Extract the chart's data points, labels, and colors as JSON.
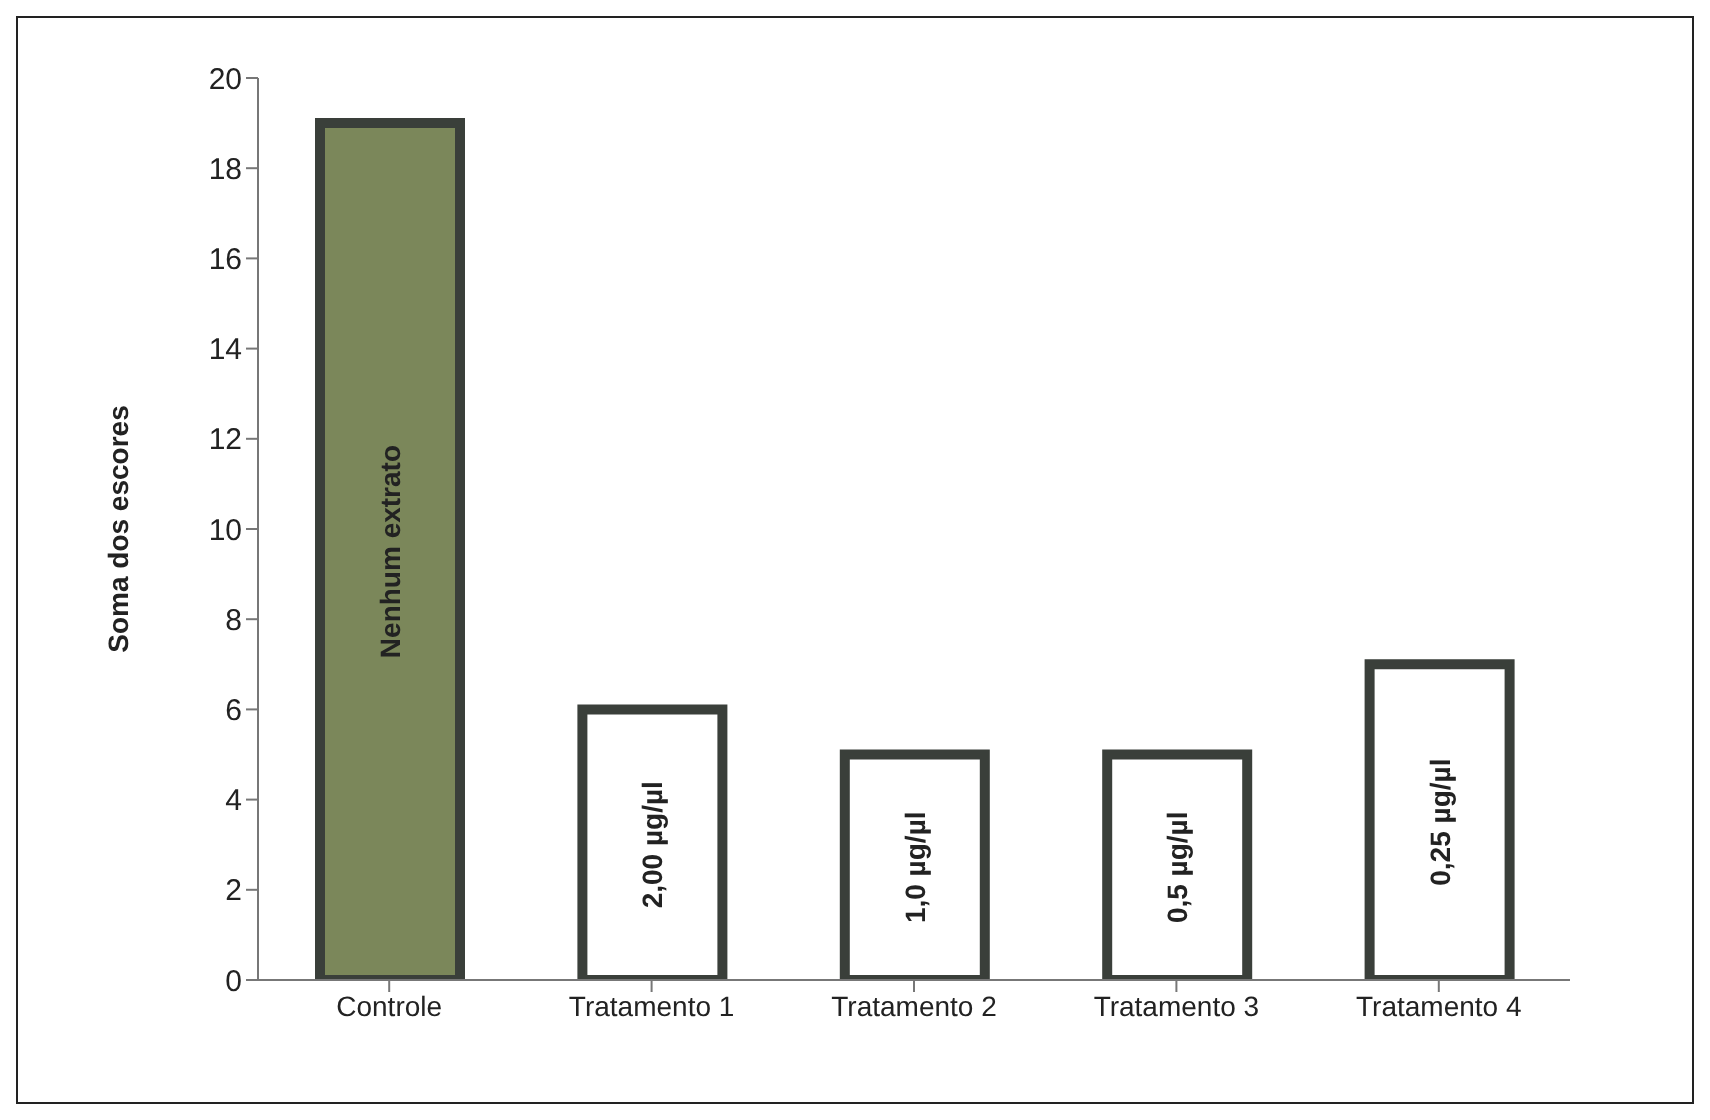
{
  "chart_data": {
    "type": "bar",
    "ylabel": "Soma dos escores",
    "categories": [
      "Controle",
      "Tratamento 1",
      "Tratamento 2",
      "Tratamento 3",
      "Tratamento 4"
    ],
    "values": [
      19,
      6,
      5,
      5,
      7
    ],
    "colors": [
      "#7b875a",
      "#ffffff",
      "#ffffff",
      "#ffffff",
      "#ffffff"
    ],
    "ylim": [
      0,
      20
    ],
    "yticks": [
      0,
      2,
      4,
      6,
      8,
      10,
      12,
      14,
      16,
      18,
      20
    ],
    "grid": false,
    "legend": false,
    "annotations": [
      "Nenhum extrato",
      "2,00 µg/µl",
      "1,0 µg/µl",
      "0,5 µg/µl",
      "0,25 µg/µl"
    ]
  }
}
